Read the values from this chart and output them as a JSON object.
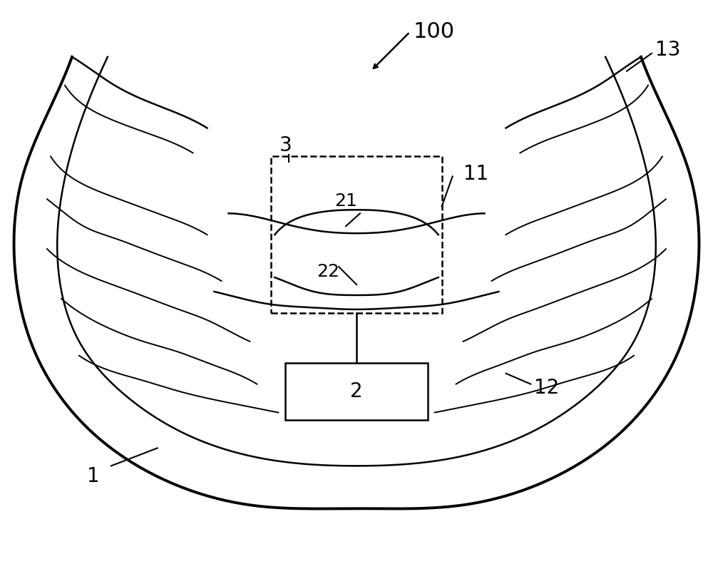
{
  "bg_color": "#ffffff",
  "line_color": "#000000",
  "label_100": "100",
  "label_1": "1",
  "label_2": "2",
  "label_3": "3",
  "label_11": "11",
  "label_12": "12",
  "label_13": "13",
  "label_21": "21",
  "label_22": "22",
  "font_size_large": 22,
  "font_size_label": 20
}
